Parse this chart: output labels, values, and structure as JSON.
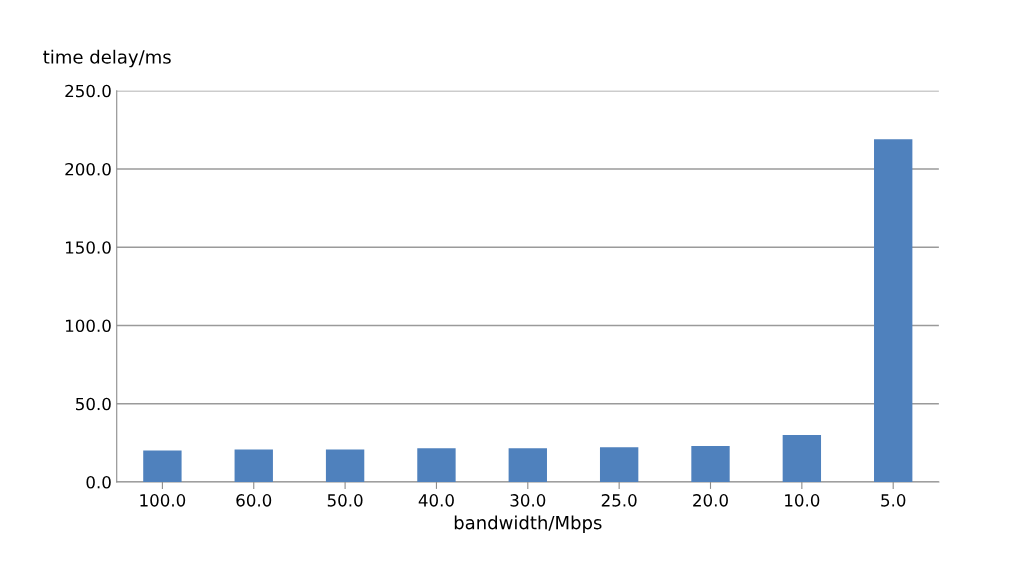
{
  "chart_data": {
    "type": "bar",
    "ylabel": "time delay/ms",
    "xlabel": "bandwidth/Mbps",
    "categories": [
      "100.0",
      "60.0",
      "50.0",
      "40.0",
      "30.0",
      "25.0",
      "20.0",
      "10.0",
      "5.0"
    ],
    "values": [
      20.1,
      20.8,
      20.8,
      21.5,
      21.5,
      22.2,
      22.9,
      30.0,
      219.0
    ],
    "color": "#4f81bd",
    "ylim": [
      0,
      250
    ],
    "yticks": [
      {
        "value": 0,
        "label": "0.0"
      },
      {
        "value": 50,
        "label": "50.0"
      },
      {
        "value": 100,
        "label": "100.0"
      },
      {
        "value": 150,
        "label": "150.0"
      },
      {
        "value": 200,
        "label": "200.0"
      },
      {
        "value": 250,
        "label": "250.0"
      }
    ],
    "grid": "y",
    "legend": false
  }
}
